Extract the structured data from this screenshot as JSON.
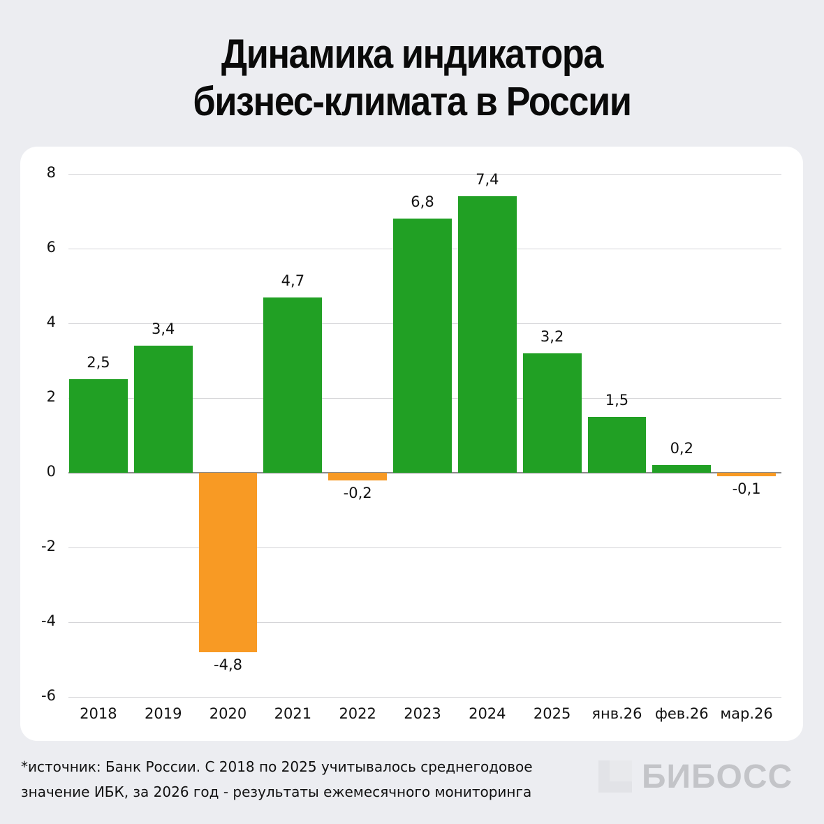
{
  "header": {
    "title_line1": "Динамика индикатора",
    "title_line2": "бизнес-климата в России"
  },
  "colors": {
    "positive": "#21a024",
    "negative": "#f89a24",
    "background": "#ecedf1",
    "card": "#ffffff"
  },
  "footer": {
    "line1": "*источник: Банк России. С 2018 по 2025 учитывалось среднегодовое",
    "line2": "значение ИБК, за 2026 год - результаты ежемесячного мониторинга"
  },
  "logo": {
    "text": "БИБОСС"
  },
  "chart_data": {
    "type": "bar",
    "title": "Динамика индикатора бизнес-климата в России",
    "xlabel": "",
    "ylabel": "",
    "ylim": [
      -6,
      8
    ],
    "yticks": [
      "8",
      "6",
      "4",
      "2",
      "0",
      "-2",
      "-4",
      "-6"
    ],
    "grid": true,
    "legend": null,
    "categories": [
      "2018",
      "2019",
      "2020",
      "2021",
      "2022",
      "2023",
      "2024",
      "2025",
      "янв.26",
      "фев.26",
      "мар.26"
    ],
    "values": [
      2.5,
      3.4,
      -4.8,
      4.7,
      -0.2,
      6.8,
      7.4,
      3.2,
      1.5,
      0.2,
      -0.1
    ],
    "value_labels": [
      "2,5",
      "3,4",
      "-4,8",
      "4,7",
      "-0,2",
      "6,8",
      "7,4",
      "3,2",
      "1,5",
      "0,2",
      "-0,1"
    ],
    "annotations": [
      "*источник: Банк России. С 2018 по 2025 учитывалось среднегодовое значение ИБК, за 2026 год - результаты ежемесячного мониторинга"
    ]
  }
}
